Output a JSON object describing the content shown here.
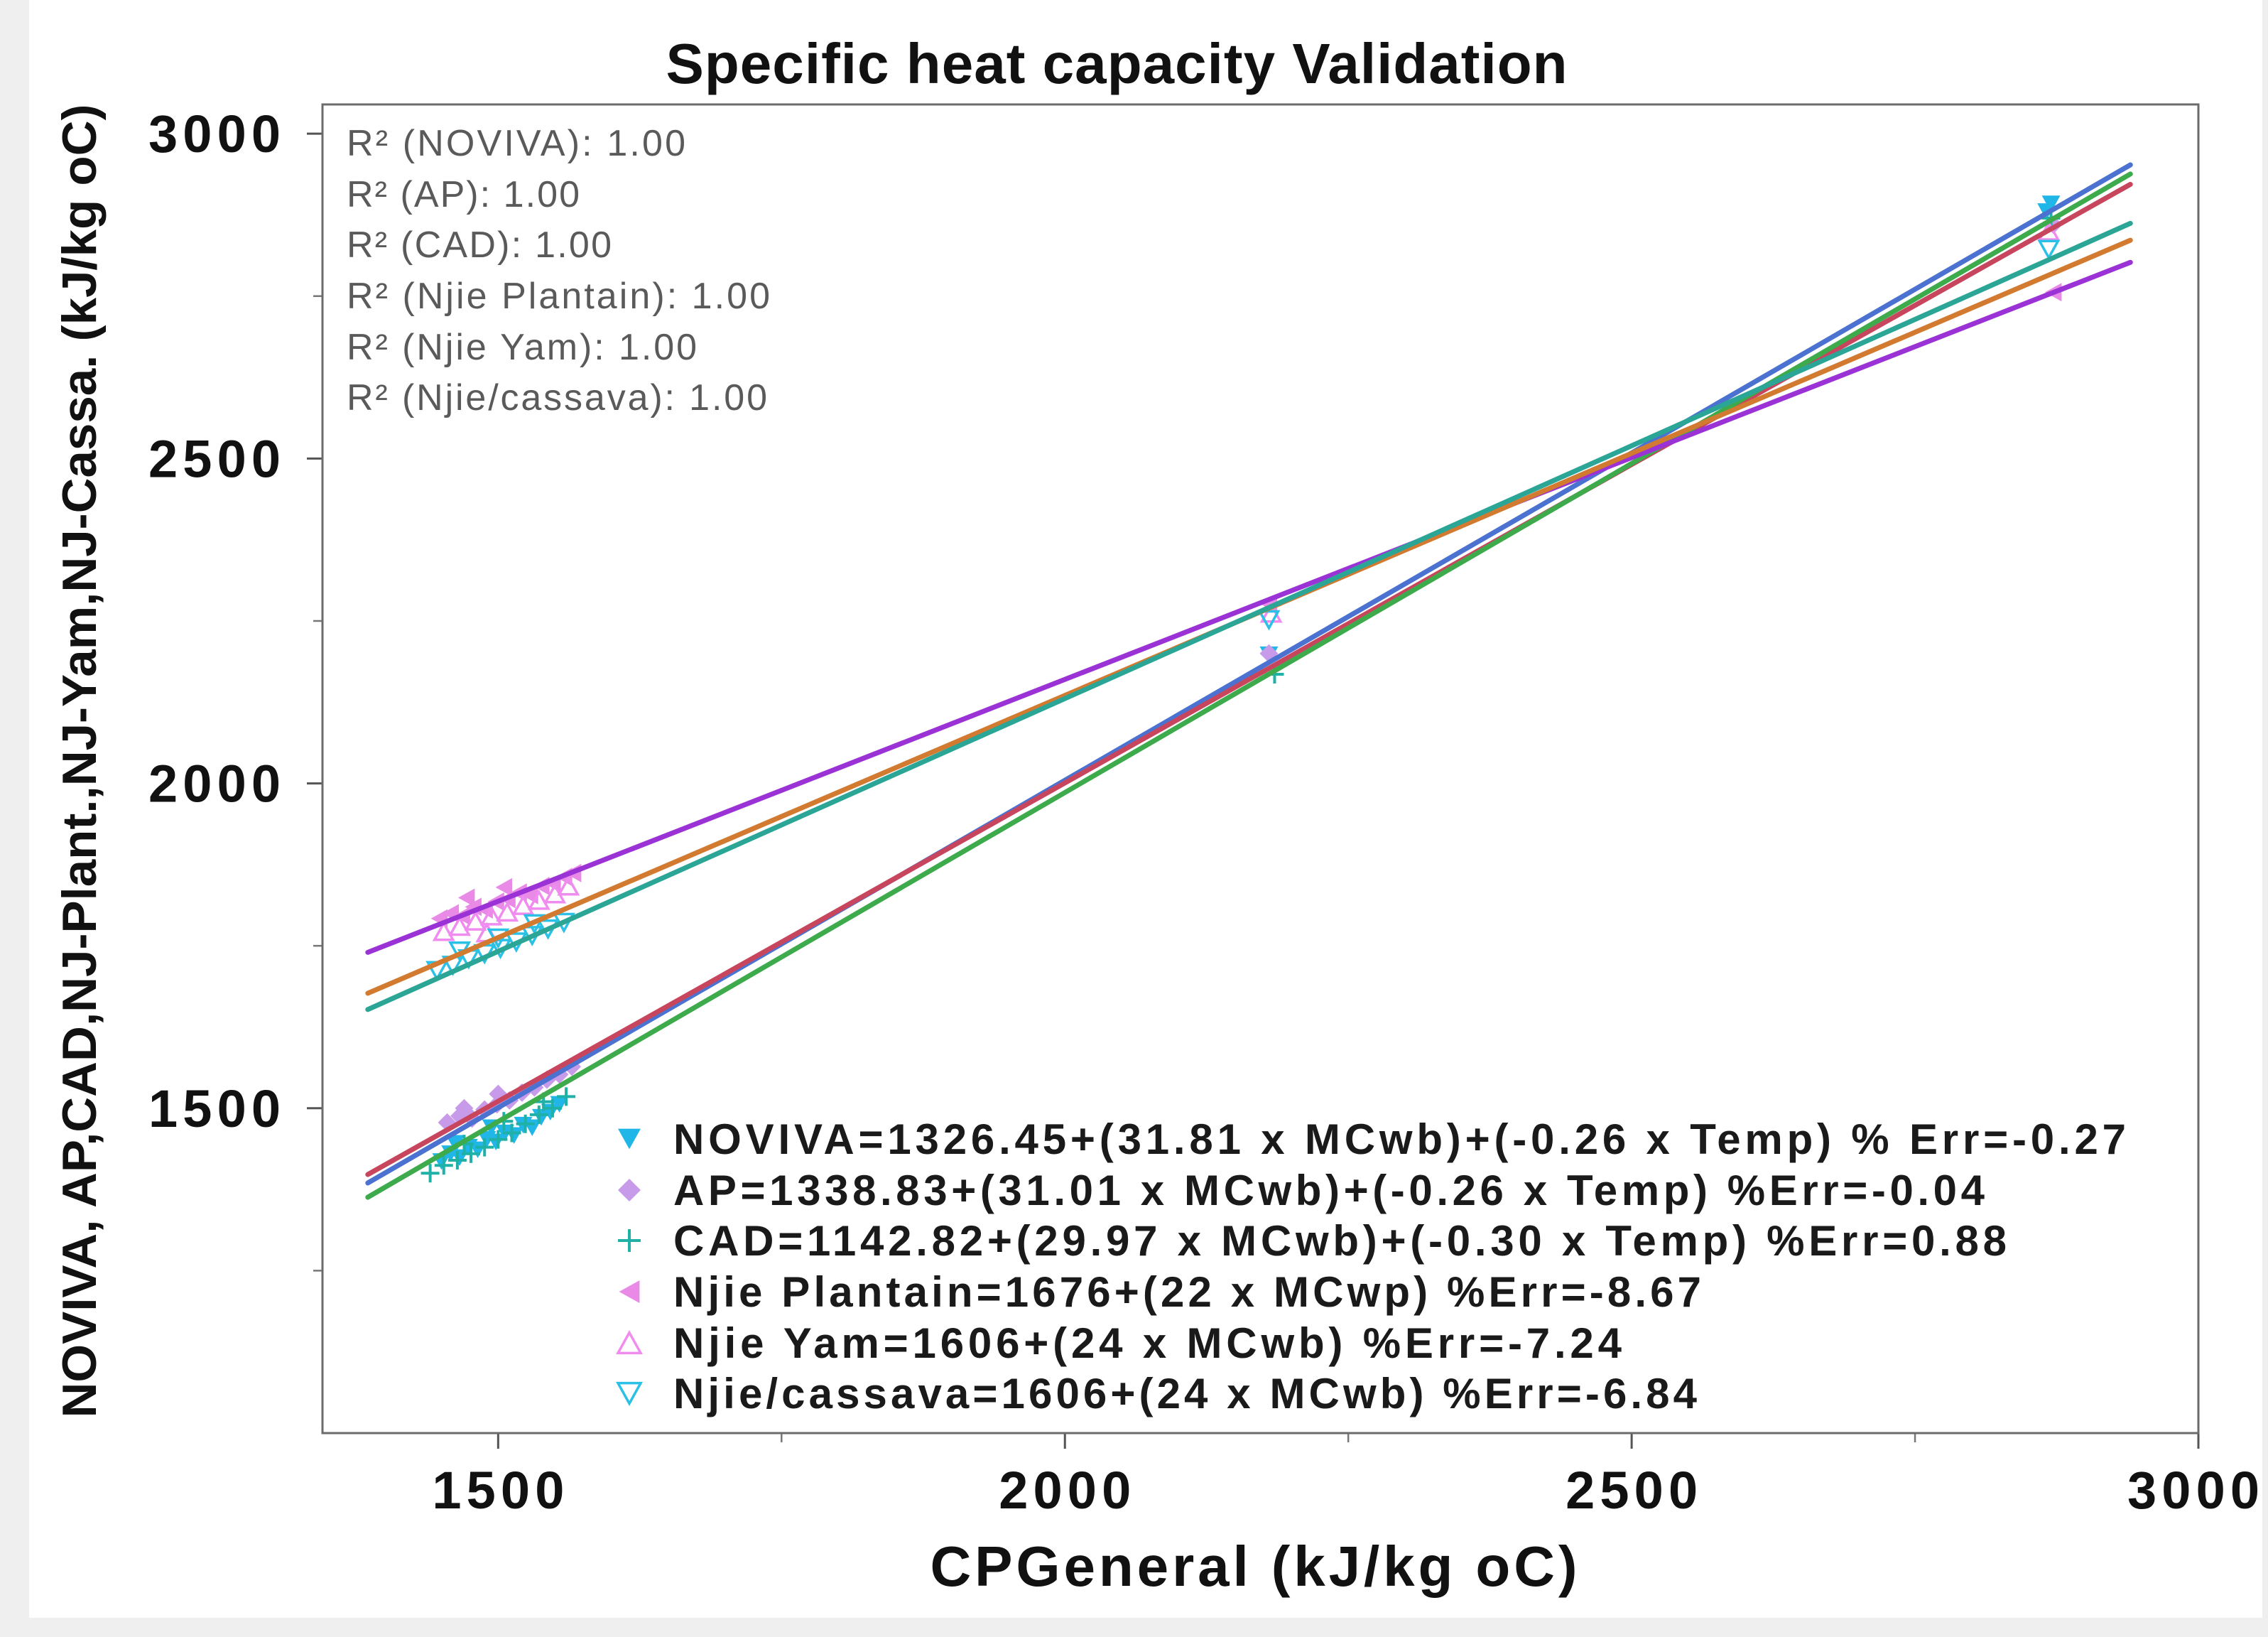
{
  "chart_data": {
    "type": "scatter",
    "title": "Specific heat capacity Validation",
    "xlabel": "CPGeneral (kJ/kg oC)",
    "ylabel": "NOVIVA, AP,CAD,NJ-Plant.,NJ-Yam,NJ-Cassa. (kJ/kg oC)",
    "xlim": [
      1345,
      3000
    ],
    "ylim": [
      1000,
      3045
    ],
    "x_ticks": [
      1500,
      2000,
      2500,
      3000
    ],
    "y_ticks": [
      1500,
      2000,
      2500,
      3000
    ],
    "x_minor_ticks": [
      1750,
      2250,
      2750
    ],
    "y_minor_ticks": [
      1250,
      1750,
      2250,
      2750
    ],
    "grid": false,
    "legend_position": "bottom-right",
    "annotations": [
      "R² (NOVIVA): 1.00",
      "R² (AP): 1.00",
      "R² (CAD): 1.00",
      "R² (Njie Plantain): 1.00",
      "R² (Njie Yam): 1.00",
      "R² (Njie/cassava): 1.00"
    ],
    "series": [
      {
        "name": "NOVIVA=1326.45+(31.81 x MCwb)+(-0.26 x Temp) % Err=-0.27",
        "marker": "triangle-down-filled",
        "color": "#21B6E8",
        "points": [
          [
            1450,
            1418
          ],
          [
            1458,
            1430
          ],
          [
            1466,
            1424
          ],
          [
            1474,
            1440
          ],
          [
            1482,
            1436
          ],
          [
            1490,
            1452
          ],
          [
            1498,
            1448
          ],
          [
            1506,
            1462
          ],
          [
            1514,
            1458
          ],
          [
            1522,
            1474
          ],
          [
            1530,
            1470
          ],
          [
            1538,
            1486
          ],
          [
            1546,
            1494
          ],
          [
            1554,
            1506
          ],
          [
            1462,
            1446
          ],
          [
            1494,
            1470
          ],
          [
            2180,
            2198
          ],
          [
            2870,
            2892
          ],
          [
            2866,
            2880
          ]
        ]
      },
      {
        "name": "AP=1338.83+(31.01 x MCwb)+(-0.26 x Temp) %Err=-0.04",
        "marker": "diamond-filled",
        "color": "#C89BEA",
        "points": [
          [
            1455,
            1478
          ],
          [
            1466,
            1488
          ],
          [
            1477,
            1484
          ],
          [
            1488,
            1498
          ],
          [
            1499,
            1506
          ],
          [
            1510,
            1512
          ],
          [
            1521,
            1524
          ],
          [
            1532,
            1532
          ],
          [
            1543,
            1544
          ],
          [
            1554,
            1552
          ],
          [
            1565,
            1564
          ],
          [
            1470,
            1500
          ],
          [
            1500,
            1522
          ],
          [
            2180,
            2200
          ],
          [
            2872,
            2860
          ]
        ]
      },
      {
        "name": "CAD=1142.82+(29.97 x MCwb)+(-0.30 x Temp) %Err=0.88",
        "marker": "plus",
        "color": "#1FB0A6",
        "points": [
          [
            1440,
            1400
          ],
          [
            1452,
            1412
          ],
          [
            1464,
            1420
          ],
          [
            1476,
            1430
          ],
          [
            1488,
            1440
          ],
          [
            1500,
            1452
          ],
          [
            1512,
            1462
          ],
          [
            1524,
            1476
          ],
          [
            1536,
            1490
          ],
          [
            1548,
            1500
          ],
          [
            1560,
            1518
          ],
          [
            1470,
            1445
          ],
          [
            1505,
            1480
          ],
          [
            1540,
            1510
          ],
          [
            2185,
            2168
          ],
          [
            2870,
            2870
          ]
        ]
      },
      {
        "name": "Njie Plantain=1676+(22 x MCwp) %Err=-8.67",
        "marker": "triangle-left-filled",
        "color": "#E98BE6",
        "points": [
          [
            1448,
            1792
          ],
          [
            1458,
            1800
          ],
          [
            1468,
            1796
          ],
          [
            1478,
            1810
          ],
          [
            1488,
            1806
          ],
          [
            1498,
            1818
          ],
          [
            1508,
            1822
          ],
          [
            1518,
            1832
          ],
          [
            1528,
            1828
          ],
          [
            1538,
            1842
          ],
          [
            1548,
            1846
          ],
          [
            1558,
            1856
          ],
          [
            1566,
            1862
          ],
          [
            1472,
            1824
          ],
          [
            1505,
            1840
          ],
          [
            2180,
            2276
          ],
          [
            2872,
            2756
          ]
        ]
      },
      {
        "name": "Njie Yam=1606+(24 x MCwb) %Err=-7.24",
        "marker": "triangle-up-open",
        "color": "#F08CEF",
        "points": [
          [
            1452,
            1772
          ],
          [
            1466,
            1780
          ],
          [
            1480,
            1788
          ],
          [
            1494,
            1796
          ],
          [
            1508,
            1802
          ],
          [
            1522,
            1812
          ],
          [
            1536,
            1820
          ],
          [
            1550,
            1830
          ],
          [
            1562,
            1842
          ],
          [
            1490,
            1770
          ],
          [
            2182,
            2262
          ],
          [
            2868,
            2850
          ]
        ]
      },
      {
        "name": "Njie/cassava=1606+(24 x MCwb) %Err=-6.84",
        "marker": "triangle-down-open",
        "color": "#2BC0E6",
        "points": [
          [
            1446,
            1712
          ],
          [
            1460,
            1720
          ],
          [
            1474,
            1730
          ],
          [
            1488,
            1738
          ],
          [
            1502,
            1746
          ],
          [
            1516,
            1756
          ],
          [
            1530,
            1766
          ],
          [
            1544,
            1776
          ],
          [
            1558,
            1786
          ],
          [
            1466,
            1742
          ],
          [
            1500,
            1762
          ],
          [
            1532,
            1784
          ],
          [
            2180,
            2252
          ],
          [
            2868,
            2822
          ]
        ]
      }
    ],
    "fit_lines": [
      {
        "color": "#4B72D1",
        "x": [
          1385,
          2940
        ],
        "y": [
          1385,
          2952
        ]
      },
      {
        "color": "#C8455E",
        "x": [
          1385,
          2940
        ],
        "y": [
          1398,
          2922
        ]
      },
      {
        "color": "#3DAA4C",
        "x": [
          1385,
          2940
        ],
        "y": [
          1363,
          2938
        ]
      },
      {
        "color": "#9B32D6",
        "x": [
          1385,
          2940
        ],
        "y": [
          1740,
          2802
        ]
      },
      {
        "color": "#D27A30",
        "x": [
          1385,
          2940
        ],
        "y": [
          1677,
          2836
        ]
      },
      {
        "color": "#2AA596",
        "x": [
          1385,
          2940
        ],
        "y": [
          1652,
          2862
        ]
      }
    ]
  }
}
